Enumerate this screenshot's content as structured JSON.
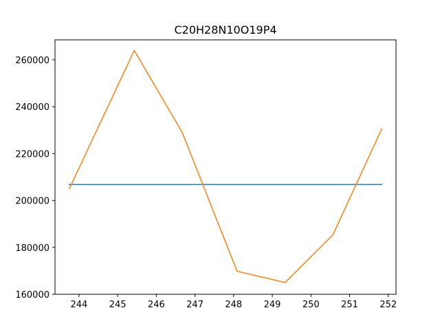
{
  "chart_data": {
    "type": "line",
    "title": "C20H28N10O19P4",
    "xlabel": "",
    "ylabel": "",
    "xlim": [
      243.38,
      252.2
    ],
    "ylim": [
      160000,
      268500
    ],
    "grid": false,
    "x_ticks": [
      244,
      245,
      246,
      247,
      248,
      249,
      250,
      251,
      252
    ],
    "y_ticks": [
      160000,
      180000,
      200000,
      220000,
      240000,
      260000
    ],
    "series": [
      {
        "color": "#1f77b4",
        "x": [
          243.75,
          251.83
        ],
        "y": [
          206800,
          206800
        ]
      },
      {
        "color": "#ff7f0e",
        "x": [
          243.75,
          245.43,
          246.67,
          248.09,
          249.33,
          250.57,
          251.83
        ],
        "y": [
          205000,
          264000,
          229000,
          169800,
          165000,
          185400,
          230500
        ]
      }
    ]
  }
}
